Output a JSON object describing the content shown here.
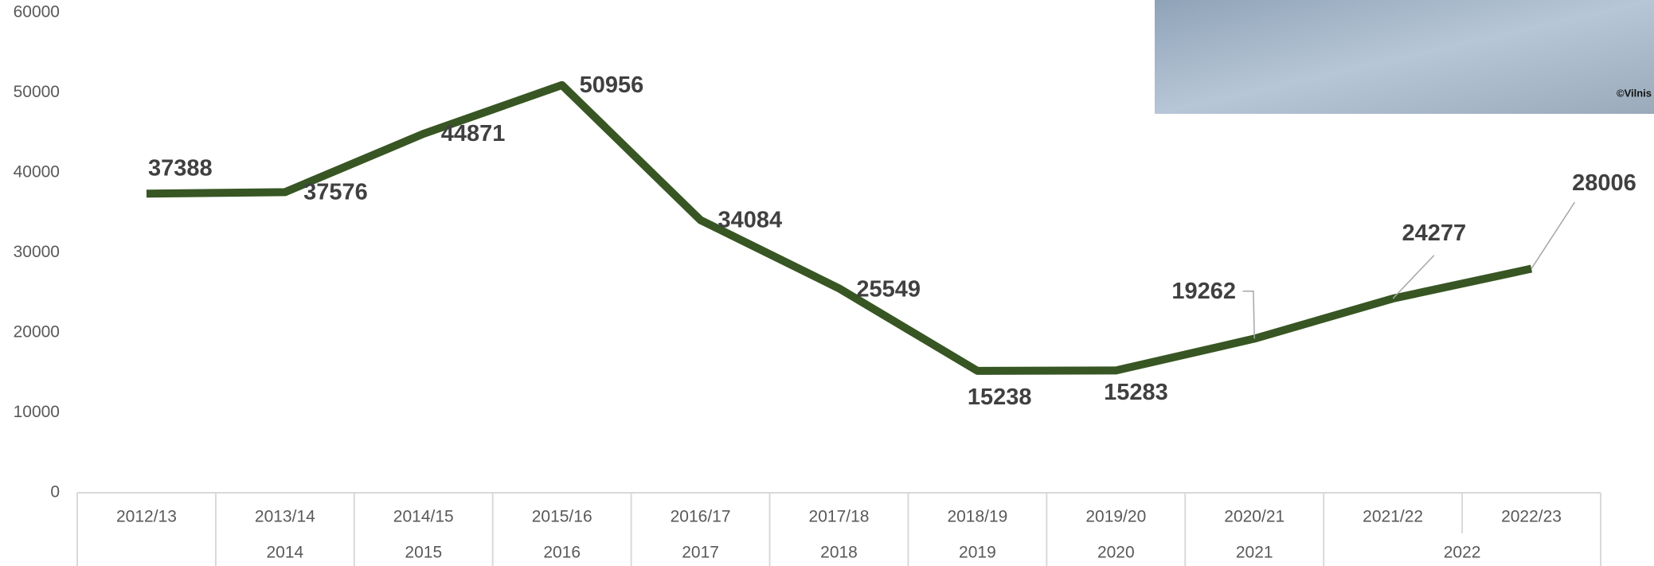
{
  "chart_data": {
    "type": "line",
    "categories": [
      "2012/13",
      "2013/14",
      "2014/15",
      "2015/16",
      "2016/17",
      "2017/18",
      "2018/19",
      "2019/20",
      "2020/21",
      "2021/22",
      "2022/23"
    ],
    "category_groups": [
      null,
      "2014",
      "2015",
      "2016",
      "2017",
      "2018",
      "2019",
      "2020",
      "2021",
      "2022",
      null
    ],
    "series": [
      {
        "color": "#375623",
        "values": [
          37388,
          37576,
          44871,
          50956,
          34084,
          25549,
          15238,
          15283,
          19262,
          24277,
          28006
        ]
      }
    ],
    "ylim": [
      0,
      60000
    ],
    "yticks": [
      0,
      10000,
      20000,
      30000,
      40000,
      50000,
      60000
    ],
    "photo_credit": "©Vilnis"
  }
}
